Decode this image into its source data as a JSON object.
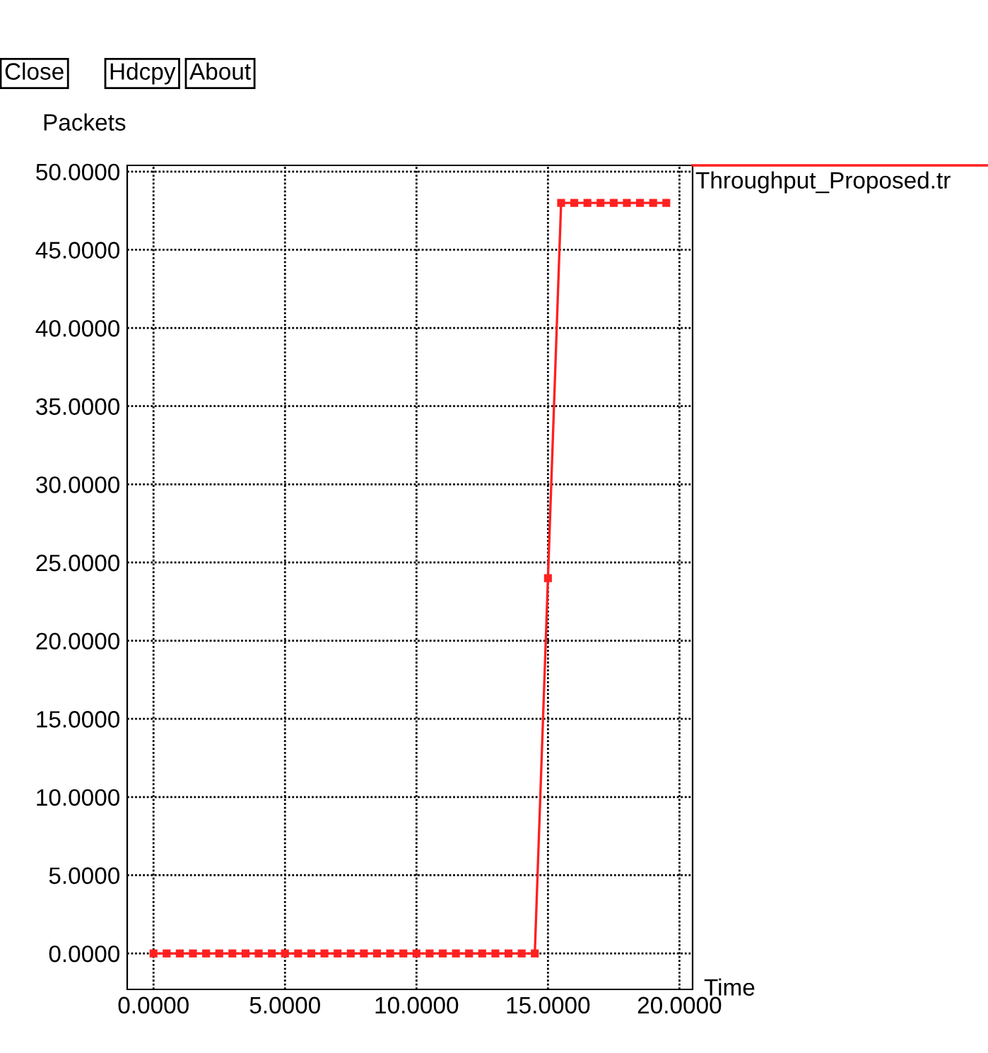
{
  "chart_data": {
    "type": "line",
    "ylabel": "Packets",
    "xlabel": "Time",
    "annotations": [
      "Close",
      "Hdcpy",
      "About"
    ],
    "series": [
      {
        "name": "Throughput_Proposed.tr",
        "color": "#ff2020",
        "x": [
          0,
          0.5,
          1,
          1.5,
          2,
          2.5,
          3,
          3.5,
          4,
          4.5,
          5,
          5.5,
          6,
          6.5,
          7,
          7.5,
          8,
          8.5,
          9,
          9.5,
          10,
          10.5,
          11,
          11.5,
          12,
          12.5,
          13,
          13.5,
          14,
          14.5,
          15,
          15.5,
          16,
          16.5,
          17,
          17.5,
          18,
          18.5,
          19,
          19.5
        ],
        "values": [
          0,
          0,
          0,
          0,
          0,
          0,
          0,
          0,
          0,
          0,
          0,
          0,
          0,
          0,
          0,
          0,
          0,
          0,
          0,
          0,
          0,
          0,
          0,
          0,
          0,
          0,
          0,
          0,
          0,
          0,
          24,
          48,
          48,
          48,
          48,
          48,
          48,
          48,
          48,
          48
        ]
      }
    ],
    "xlim": [
      -1,
      20.5
    ],
    "ylim": [
      -2.3,
      50.4
    ],
    "xticks": [
      {
        "value": 0,
        "label": "0.0000"
      },
      {
        "value": 5,
        "label": "5.0000"
      },
      {
        "value": 10,
        "label": "10.0000"
      },
      {
        "value": 15,
        "label": "15.0000"
      },
      {
        "value": 20,
        "label": "20.0000"
      }
    ],
    "yticks": [
      {
        "value": 0,
        "label": "0.0000"
      },
      {
        "value": 5,
        "label": "5.0000"
      },
      {
        "value": 10,
        "label": "10.0000"
      },
      {
        "value": 15,
        "label": "15.0000"
      },
      {
        "value": 20,
        "label": "20.0000"
      },
      {
        "value": 25,
        "label": "25.0000"
      },
      {
        "value": 30,
        "label": "30.0000"
      },
      {
        "value": 35,
        "label": "35.0000"
      },
      {
        "value": 40,
        "label": "40.0000"
      },
      {
        "value": 45,
        "label": "45.0000"
      },
      {
        "value": 50,
        "label": "50.0000"
      }
    ],
    "grid": true,
    "legend": "right",
    "marker": "square",
    "line_style": "solid"
  }
}
